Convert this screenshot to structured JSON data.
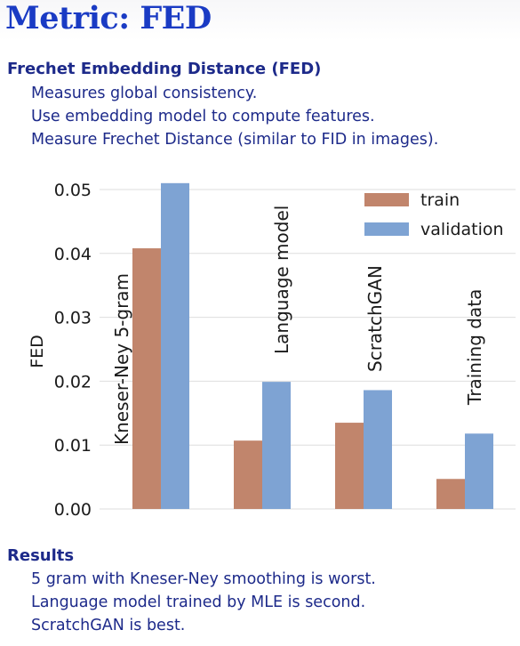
{
  "slide": {
    "title": "Metric: FED",
    "heading": "Frechet Embedding Distance (FED)",
    "points": [
      "Measures global consistency.",
      "Use embedding model to compute features.",
      "Measure Frechet Distance (similar to FID in images)."
    ],
    "results_heading": "Results",
    "results": [
      "5 gram with Kneser-Ney smoothing is worst.",
      "Language model trained by MLE is second.",
      "ScratchGAN is best."
    ]
  },
  "chart_data": {
    "type": "bar",
    "categories": [
      "Kneser-Ney 5-gram",
      "Language model",
      "ScratchGAN",
      "Training data"
    ],
    "series": [
      {
        "name": "train",
        "values": [
          0.0408,
          0.0107,
          0.0135,
          0.0047
        ],
        "color": "#c1856c"
      },
      {
        "name": "validation",
        "values": [
          0.051,
          0.0199,
          0.0186,
          0.0118
        ],
        "color": "#7ea3d3"
      }
    ],
    "ylabel": "FED",
    "xlabel": "",
    "ylim": [
      0,
      0.05
    ],
    "yticks": [
      "0.00",
      "0.01",
      "0.02",
      "0.03",
      "0.04",
      "0.05"
    ],
    "grid": true,
    "legend_position": "top-right"
  }
}
